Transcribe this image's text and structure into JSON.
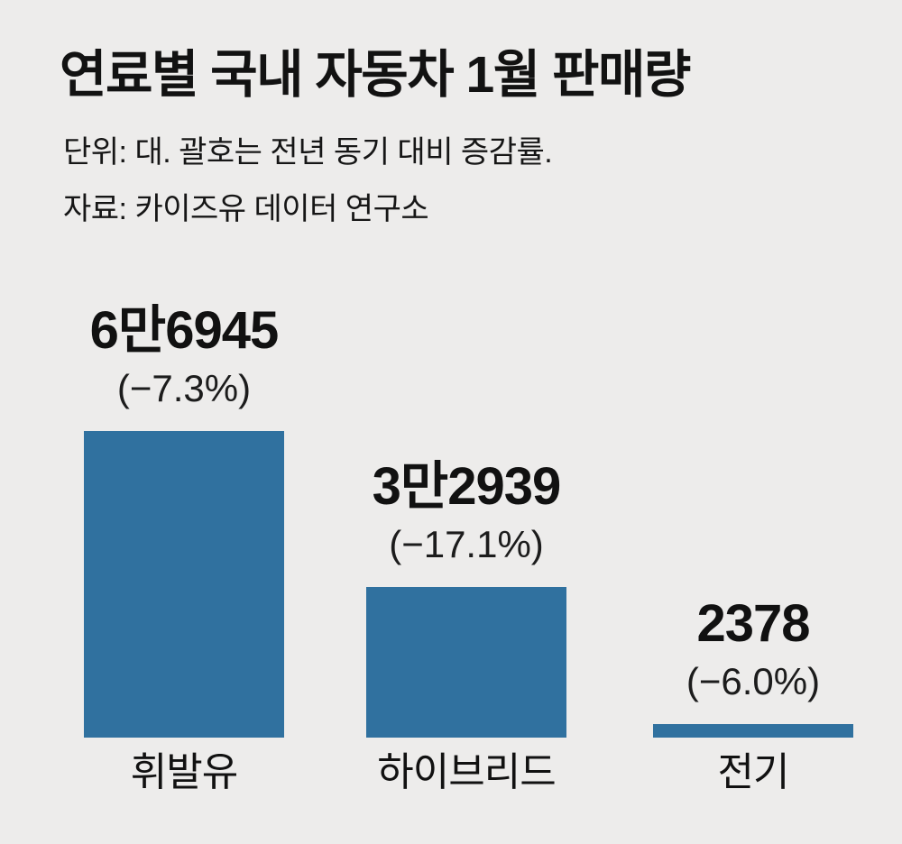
{
  "page": {
    "background_color": "#edeceb"
  },
  "header": {
    "title": "연료별 국내 자동차 1월 판매량",
    "note_line1": "단위: 대. 괄호는 전년 동기 대비 증감률.",
    "note_line2": "자료: 카이즈유 데이터 연구소"
  },
  "chart_data": {
    "type": "bar",
    "title": "연료별 국내 자동차 1월 판매량",
    "unit_note": "단위: 대. 괄호는 전년 동기 대비 증감률.",
    "source": "자료: 카이즈유 데이터 연구소",
    "categories": [
      "휘발유",
      "하이브리드",
      "전기"
    ],
    "values": [
      66945,
      32939,
      2378
    ],
    "value_labels": [
      "6만6945",
      "3만2939",
      "2378"
    ],
    "change_labels": [
      "(−7.3%)",
      "(−17.1%)",
      "(−6.0%)"
    ],
    "yoy_change_pct": [
      -7.3,
      -17.1,
      -6.0
    ],
    "bar_color": "#30719f",
    "text_color": "#111111",
    "ylim": [
      0,
      66945
    ],
    "grid": false,
    "legend": false,
    "orientation": "vertical"
  }
}
